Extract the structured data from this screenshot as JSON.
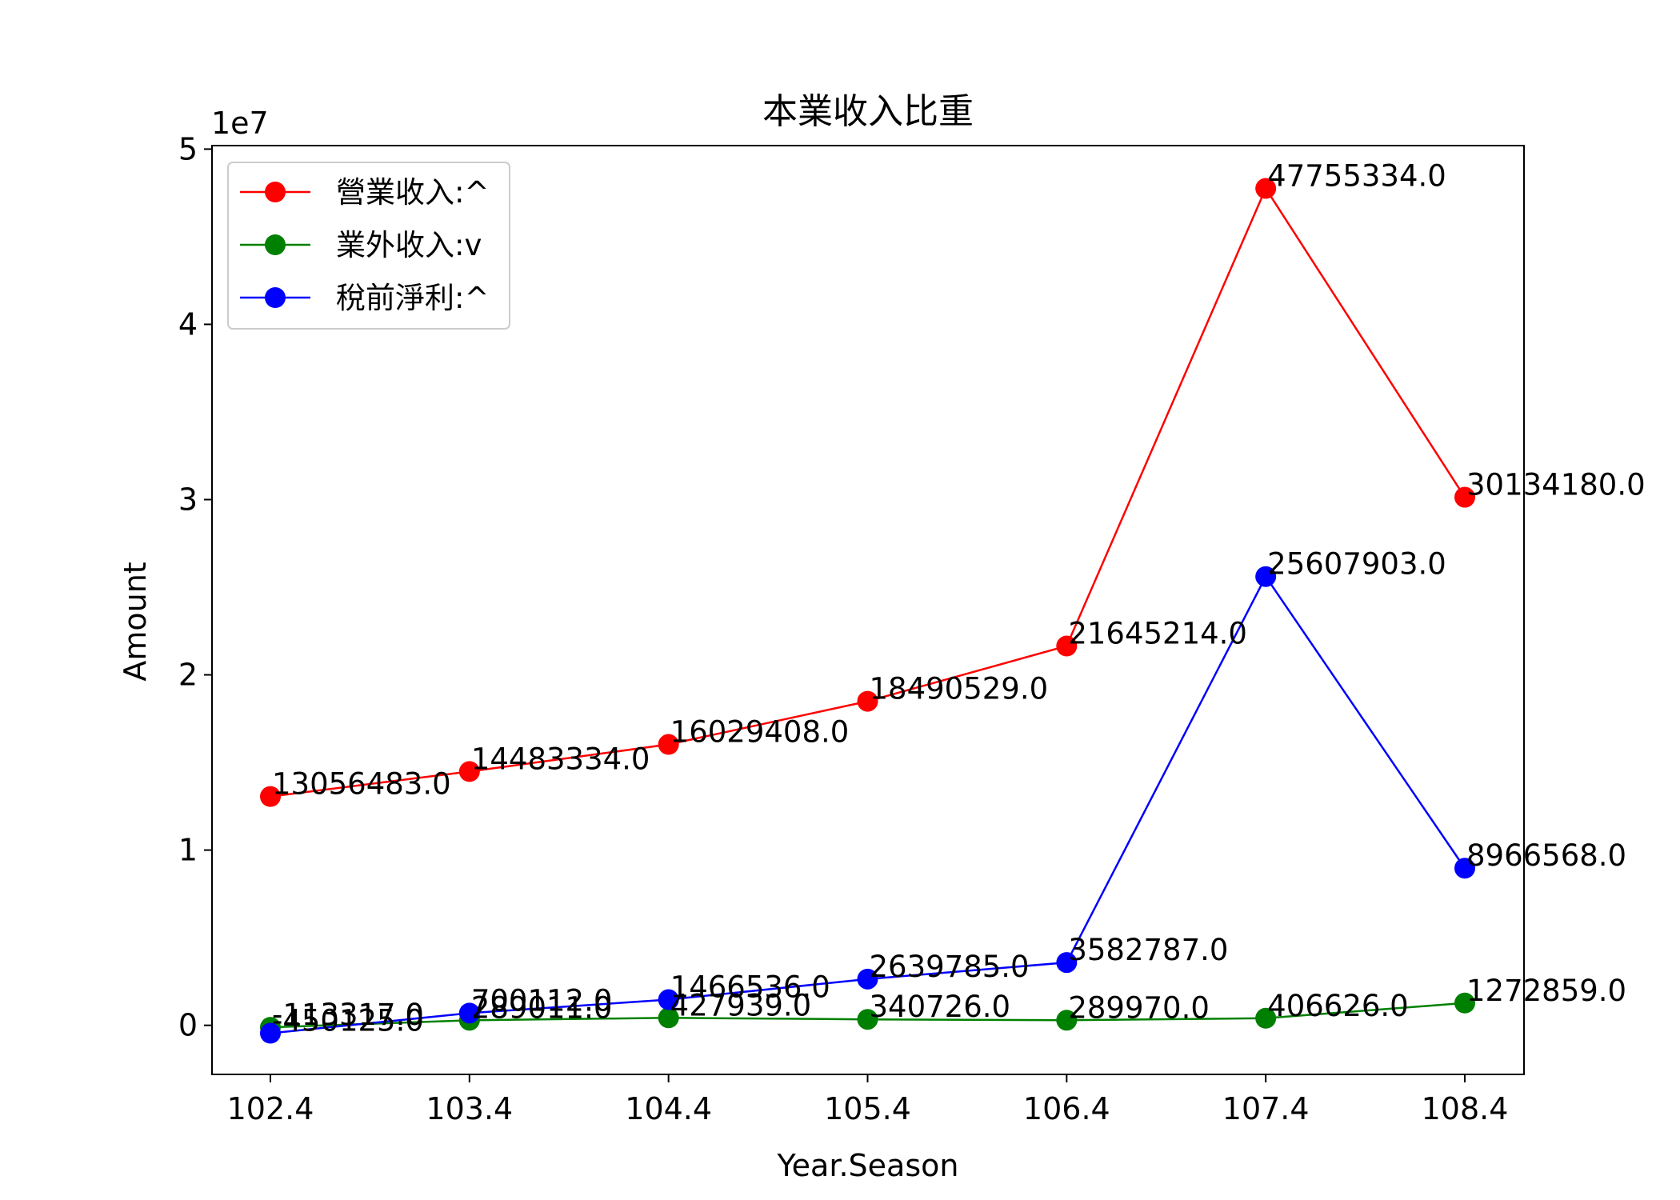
{
  "chart_data": {
    "type": "line",
    "title": "本業收入比重",
    "xlabel": "Year.Season",
    "ylabel": "Amount",
    "y_offset_text": "1e7",
    "categories": [
      "102.4",
      "103.4",
      "104.4",
      "105.4",
      "106.4",
      "107.4",
      "108.4"
    ],
    "yticks": [
      "0",
      "1",
      "2",
      "3",
      "4",
      "5"
    ],
    "ylim": [
      -2800000,
      50200000
    ],
    "grid": false,
    "legend_position": "upper-left",
    "series": [
      {
        "name": "營業收入:^",
        "color": "#ff0000",
        "values": [
          13056483,
          14483334,
          16029408,
          18490529,
          21645214,
          47755334,
          30134180
        ],
        "labels": [
          "13056483.0",
          "14483334.0",
          "16029408.0",
          "18490529.0",
          "21645214.0",
          "47755334.0",
          "30134180.0"
        ]
      },
      {
        "name": "業外收入:v",
        "color": "#008000",
        "values": [
          -113317,
          289011,
          427939,
          340726,
          289970,
          406626,
          1272859
        ],
        "labels": [
          "-113317.0",
          "289011.0",
          "427939.0",
          "340726.0",
          "289970.0",
          "406626.0",
          "1272859.0"
        ]
      },
      {
        "name": "稅前淨利:^",
        "color": "#0000ff",
        "values": [
          -450125,
          700112,
          1466536,
          2639785,
          3582787,
          25607903,
          8966568
        ],
        "labels": [
          "-450125.0",
          "700112.0",
          "1466536.0",
          "2639785.0",
          "3582787.0",
          "25607903.0",
          "8966568.0"
        ]
      }
    ]
  }
}
